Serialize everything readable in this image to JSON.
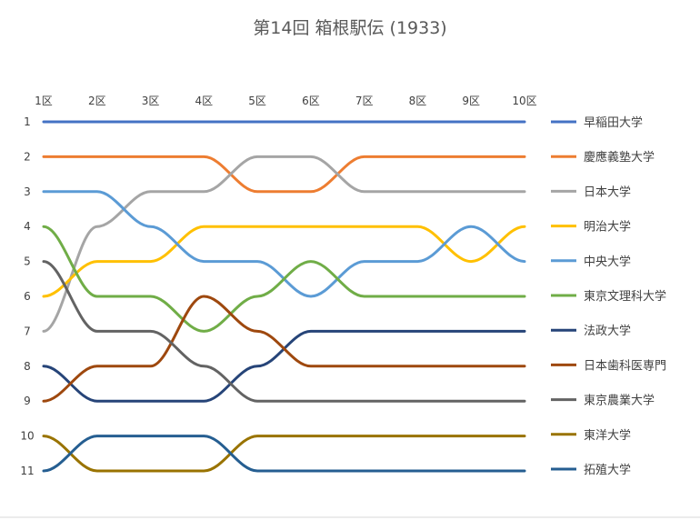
{
  "chart_data": {
    "type": "line",
    "title": "第14回 箱根駅伝 (1933)",
    "xlabel": "",
    "ylabel": "",
    "categories": [
      "1区",
      "2区",
      "3区",
      "4区",
      "5区",
      "6区",
      "7区",
      "8区",
      "9区",
      "10区"
    ],
    "y_ticks": [
      "1",
      "2",
      "3",
      "4",
      "5",
      "6",
      "7",
      "8",
      "9",
      "10",
      "11"
    ],
    "ylim": [
      1,
      11
    ],
    "y_inverted": true,
    "grid": false,
    "legend_position": "right",
    "series": [
      {
        "name": "早稲田大学",
        "color": "#4472C4",
        "values": [
          1,
          1,
          1,
          1,
          1,
          1,
          1,
          1,
          1,
          1
        ]
      },
      {
        "name": "慶應義塾大学",
        "color": "#ED7D31",
        "values": [
          2,
          2,
          2,
          2,
          3,
          3,
          2,
          2,
          2,
          2
        ]
      },
      {
        "name": "日本大学",
        "color": "#A5A5A5",
        "values": [
          7,
          4,
          3,
          3,
          2,
          2,
          3,
          3,
          3,
          3
        ]
      },
      {
        "name": "明治大学",
        "color": "#FFC000",
        "values": [
          6,
          5,
          5,
          4,
          4,
          4,
          4,
          4,
          5,
          4
        ]
      },
      {
        "name": "中央大学",
        "color": "#5B9BD5",
        "values": [
          3,
          3,
          4,
          5,
          5,
          6,
          5,
          5,
          4,
          5
        ]
      },
      {
        "name": "東京文理科大学",
        "color": "#70AD47",
        "values": [
          4,
          6,
          6,
          7,
          6,
          5,
          6,
          6,
          6,
          6
        ]
      },
      {
        "name": "法政大学",
        "color": "#264478",
        "values": [
          8,
          9,
          9,
          9,
          8,
          7,
          7,
          7,
          7,
          7
        ]
      },
      {
        "name": "日本歯科医専門",
        "color": "#9E480E",
        "values": [
          9,
          8,
          8,
          6,
          7,
          8,
          8,
          8,
          8,
          8
        ]
      },
      {
        "name": "東京農業大学",
        "color": "#636363",
        "values": [
          5,
          7,
          7,
          8,
          9,
          9,
          9,
          9,
          9,
          9
        ]
      },
      {
        "name": "東洋大学",
        "color": "#997300",
        "values": [
          10,
          11,
          11,
          11,
          10,
          10,
          10,
          10,
          10,
          10
        ]
      },
      {
        "name": "拓殖大学",
        "color": "#255E91",
        "values": [
          11,
          10,
          10,
          10,
          11,
          11,
          11,
          11,
          11,
          11
        ]
      }
    ]
  }
}
